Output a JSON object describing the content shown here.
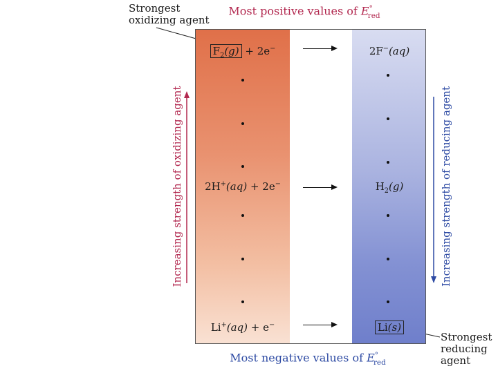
{
  "title_top": {
    "prefix": "Most positive values of ",
    "E": "E",
    "sup": "°",
    "sub": "red"
  },
  "title_bottom": {
    "prefix": "Most negative values of ",
    "E": "E",
    "sup": "°",
    "sub": "red"
  },
  "callout_oxidizing": {
    "line1": "Strongest",
    "line2": "oxidizing agent"
  },
  "callout_reducing": {
    "line1": "Strongest",
    "line2": "reducing",
    "line3": "agent"
  },
  "left_axis_label": "Increasing strength of oxidizing agent",
  "right_axis_label": "Increasing strength of reducing agent",
  "colors": {
    "oxidizing": "#b2284f",
    "reducing": "#2d4aa3"
  },
  "reactions": {
    "top": {
      "ox_species": "F",
      "ox_sub": "2",
      "ox_state": "(g)",
      "ox_rest": " + 2e",
      "ox_rest_sup": "−",
      "red_species": "2F",
      "red_sup": "−",
      "red_state": "(aq)"
    },
    "middle": {
      "ox_species": "2H",
      "ox_sup": "+",
      "ox_state": "(aq)",
      "ox_rest": " + 2e",
      "ox_rest_sup": "−",
      "red_species": "H",
      "red_sub": "2",
      "red_state": "(g)"
    },
    "bottom": {
      "ox_species": "Li",
      "ox_sup": "+",
      "ox_state": "(aq)",
      "ox_rest": " + e",
      "ox_rest_sup": "−",
      "red_species": "Li",
      "red_state": "(s)"
    }
  }
}
